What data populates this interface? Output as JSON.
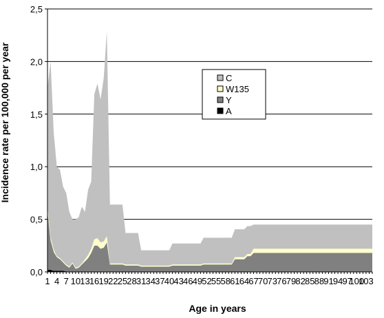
{
  "chart_data": {
    "type": "area",
    "stacked": true,
    "xlabel": "Age in years",
    "ylabel": "Incidence rate per 100,000 per year",
    "ylim": [
      0,
      2.5
    ],
    "yticks": [
      "0,0",
      "0,5",
      "1,0",
      "1,5",
      "2,0",
      "2,5"
    ],
    "ytick_values": [
      0,
      0.5,
      1.0,
      1.5,
      2.0,
      2.5
    ],
    "xticks": [
      "1",
      "4",
      "7",
      "10",
      "13",
      "16",
      "19",
      "22",
      "25",
      "28",
      "31",
      "34",
      "37",
      "40",
      "43",
      "46",
      "49",
      "52",
      "55",
      "58",
      "61",
      "64",
      "67",
      "70",
      "73",
      "76",
      "79",
      "82",
      "85",
      "88",
      "91",
      "94",
      "97",
      "100",
      "103"
    ],
    "x_range": [
      1,
      105
    ],
    "grid": "horizontal",
    "legend_placement": "center-right",
    "x": [
      1,
      2,
      3,
      4,
      5,
      6,
      7,
      8,
      9,
      10,
      11,
      12,
      13,
      14,
      15,
      16,
      17,
      18,
      19,
      20,
      21,
      22,
      23,
      24,
      25,
      26,
      27,
      28,
      29,
      30,
      31,
      32,
      33,
      34,
      35,
      36,
      37,
      38,
      39,
      40,
      41,
      42,
      43,
      44,
      45,
      46,
      47,
      48,
      49,
      50,
      51,
      52,
      53,
      54,
      55,
      56,
      57,
      58,
      59,
      60,
      61,
      62,
      63,
      64,
      65,
      66,
      67,
      68,
      69,
      70,
      71,
      72,
      73,
      74,
      75,
      76,
      77,
      78,
      79,
      80,
      81,
      82,
      83,
      84,
      85,
      86,
      87,
      88,
      89,
      90,
      91,
      92,
      93,
      94,
      95,
      96,
      97,
      98,
      99,
      100,
      101,
      102,
      103,
      104,
      105
    ],
    "series": [
      {
        "name": "A",
        "color": "#000000",
        "values": [
          0.02,
          0.02,
          0.01,
          0.01,
          0.01,
          0.01,
          0.005,
          0.005,
          0.005,
          0.005,
          0.005,
          0.005,
          0.005,
          0.005,
          0.005,
          0.005,
          0.005,
          0.005,
          0.005,
          0.005,
          0.005,
          0.005,
          0.005,
          0.005,
          0.005,
          0.005,
          0.005,
          0.005,
          0.005,
          0.005,
          0.005,
          0.005,
          0.005,
          0.005,
          0.005,
          0.005,
          0.005,
          0.005,
          0.005,
          0.005,
          0.005,
          0.005,
          0.005,
          0.005,
          0.005,
          0.005,
          0.005,
          0.005,
          0.005,
          0.005,
          0.005,
          0.005,
          0.005,
          0.005,
          0.005,
          0.005,
          0.005,
          0.005,
          0.005,
          0.005,
          0.005,
          0.005,
          0.005,
          0.005,
          0.005,
          0.005,
          0.005,
          0.005,
          0.005,
          0.005,
          0.005,
          0.005,
          0.005,
          0.005,
          0.005,
          0.005,
          0.005,
          0.005,
          0.005,
          0.005,
          0.005,
          0.005,
          0.005,
          0.005,
          0.005,
          0.005,
          0.005,
          0.005,
          0.005,
          0.005,
          0.005,
          0.005,
          0.005,
          0.005,
          0.005,
          0.005,
          0.005,
          0.005,
          0.005,
          0.005,
          0.005,
          0.005,
          0.005,
          0.005,
          0.005
        ]
      },
      {
        "name": "Y",
        "color": "#808080",
        "values": [
          0.56,
          0.28,
          0.18,
          0.13,
          0.11,
          0.08,
          0.055,
          0.035,
          0.075,
          0.025,
          0.035,
          0.065,
          0.095,
          0.125,
          0.175,
          0.245,
          0.245,
          0.215,
          0.225,
          0.275,
          0.065,
          0.065,
          0.065,
          0.065,
          0.065,
          0.055,
          0.055,
          0.055,
          0.055,
          0.055,
          0.045,
          0.045,
          0.045,
          0.045,
          0.045,
          0.045,
          0.045,
          0.045,
          0.045,
          0.045,
          0.055,
          0.055,
          0.055,
          0.055,
          0.055,
          0.055,
          0.055,
          0.055,
          0.055,
          0.055,
          0.065,
          0.065,
          0.065,
          0.065,
          0.065,
          0.065,
          0.065,
          0.065,
          0.065,
          0.065,
          0.115,
          0.115,
          0.115,
          0.115,
          0.145,
          0.145,
          0.175,
          0.175,
          0.175,
          0.175,
          0.175,
          0.175,
          0.175,
          0.175,
          0.175,
          0.175,
          0.175,
          0.175,
          0.175,
          0.175,
          0.175,
          0.175,
          0.175,
          0.175,
          0.175,
          0.175,
          0.175,
          0.175,
          0.175,
          0.175,
          0.175,
          0.175,
          0.175,
          0.175,
          0.175,
          0.175,
          0.175,
          0.175,
          0.175,
          0.175,
          0.175,
          0.175,
          0.175,
          0.175,
          0.175
        ]
      },
      {
        "name": "W135",
        "color": "#ffffcc",
        "values": [
          0.04,
          0.03,
          0.02,
          0.01,
          0.01,
          0.01,
          0.01,
          0.01,
          0.01,
          0.01,
          0.01,
          0.01,
          0.02,
          0.03,
          0.04,
          0.06,
          0.07,
          0.06,
          0.06,
          0.06,
          0.01,
          0.01,
          0.01,
          0.01,
          0.01,
          0.01,
          0.01,
          0.01,
          0.01,
          0.01,
          0.01,
          0.01,
          0.01,
          0.01,
          0.01,
          0.01,
          0.01,
          0.01,
          0.01,
          0.01,
          0.01,
          0.01,
          0.01,
          0.01,
          0.01,
          0.01,
          0.01,
          0.01,
          0.01,
          0.01,
          0.01,
          0.01,
          0.01,
          0.01,
          0.01,
          0.01,
          0.01,
          0.01,
          0.01,
          0.01,
          0.02,
          0.02,
          0.02,
          0.02,
          0.02,
          0.02,
          0.04,
          0.04,
          0.04,
          0.04,
          0.04,
          0.04,
          0.04,
          0.04,
          0.04,
          0.04,
          0.04,
          0.04,
          0.04,
          0.04,
          0.04,
          0.04,
          0.04,
          0.04,
          0.04,
          0.04,
          0.04,
          0.04,
          0.04,
          0.04,
          0.04,
          0.04,
          0.04,
          0.04,
          0.04,
          0.04,
          0.04,
          0.04,
          0.04,
          0.04,
          0.04,
          0.04,
          0.04,
          0.04,
          0.04
        ]
      },
      {
        "name": "C",
        "color": "#c0c0c0",
        "values": [
          1.13,
          1.67,
          1.11,
          0.85,
          0.84,
          0.71,
          0.68,
          0.52,
          0.41,
          0.46,
          0.47,
          0.54,
          0.45,
          0.62,
          0.64,
          1.38,
          1.47,
          1.36,
          1.55,
          1.95,
          0.56,
          0.56,
          0.56,
          0.56,
          0.56,
          0.3,
          0.3,
          0.3,
          0.3,
          0.3,
          0.145,
          0.145,
          0.145,
          0.145,
          0.145,
          0.145,
          0.145,
          0.145,
          0.145,
          0.145,
          0.2,
          0.2,
          0.2,
          0.2,
          0.2,
          0.2,
          0.2,
          0.2,
          0.2,
          0.2,
          0.245,
          0.245,
          0.245,
          0.245,
          0.245,
          0.245,
          0.245,
          0.245,
          0.245,
          0.245,
          0.265,
          0.265,
          0.265,
          0.265,
          0.265,
          0.265,
          0.23,
          0.23,
          0.23,
          0.23,
          0.23,
          0.23,
          0.23,
          0.23,
          0.23,
          0.23,
          0.23,
          0.23,
          0.23,
          0.23,
          0.23,
          0.23,
          0.23,
          0.23,
          0.23,
          0.23,
          0.23,
          0.23,
          0.23,
          0.23,
          0.23,
          0.23,
          0.23,
          0.23,
          0.23,
          0.23,
          0.23,
          0.23,
          0.23,
          0.23,
          0.23,
          0.23,
          0.23,
          0.23,
          0.23
        ]
      }
    ],
    "legend_order": [
      "C",
      "W135",
      "Y",
      "A"
    ]
  }
}
